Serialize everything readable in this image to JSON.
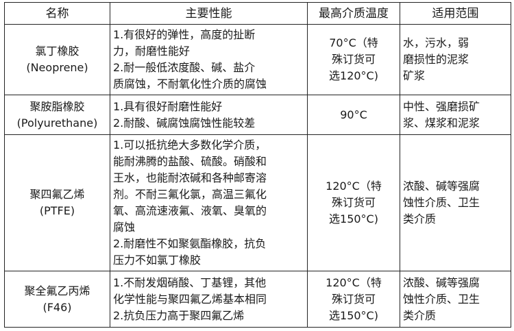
{
  "headers": [
    "名称",
    "主要性能",
    "最高介质温度",
    "适用范围"
  ],
  "rows": [
    {
      "name": [
        "氯丁橡胶",
        "(Neoprene)"
      ],
      "performance": [
        "1.有很好的弹性，高度的扯断",
        "力，耐磨性能好",
        "2.耐一般低浓度酸、碱、盐介",
        "质腐蚀，不耐氧化性介质的腐蚀"
      ],
      "temp": [
        "70°C（特",
        "殊订货可",
        "选120°C)"
      ],
      "scope": [
        "水，污水，弱",
        "磨损性的泥浆",
        "矿浆"
      ]
    },
    {
      "name": [
        "聚胺脂橡胶",
        "(Polyurethane)"
      ],
      "performance": [
        "1.具有很好耐磨性能好",
        "2.耐酸、碱腐蚀腐蚀性能较差"
      ],
      "temp": [
        "90°C"
      ],
      "scope": [
        "中性、强磨损矿",
        "浆、煤浆和泥浆"
      ]
    },
    {
      "name": [
        "聚四氟乙烯",
        "(PTFE)"
      ],
      "performance": [
        "1.可以抵抗绝大多数化学介质，",
        "能耐沸腾的盐酸、硫酸。硝酸和",
        "王水，也能耐浓碱和各种邮寄溶",
        "剂。不耐三氟化氯，高温三氟化",
        "氧、高流速液氟、液氧、臭氧的",
        "腐蚀",
        "2.耐磨性不如聚氨酯橡胶，抗负",
        "压力不如氯丁橡胶"
      ],
      "temp": [
        "120°C（特",
        "殊订货可",
        "选150°C)"
      ],
      "scope": [
        "浓酸、碱等强腐",
        "蚀性介质、卫生",
        "类介质"
      ]
    },
    {
      "name": [
        "聚全氟乙丙烯",
        "(F46)"
      ],
      "performance": [
        "1.不耐发烟硝酸、丁基锂，其他",
        "化学性能与聚四氟乙烯基本相同",
        "2.抗负压力高于聚四氟乙烯"
      ],
      "temp": [
        "120°C（特",
        "殊订货可",
        "选150°C)"
      ],
      "scope": [
        "浓酸、碱等强腐",
        "蚀性介质、卫生",
        "类介质"
      ]
    }
  ]
}
